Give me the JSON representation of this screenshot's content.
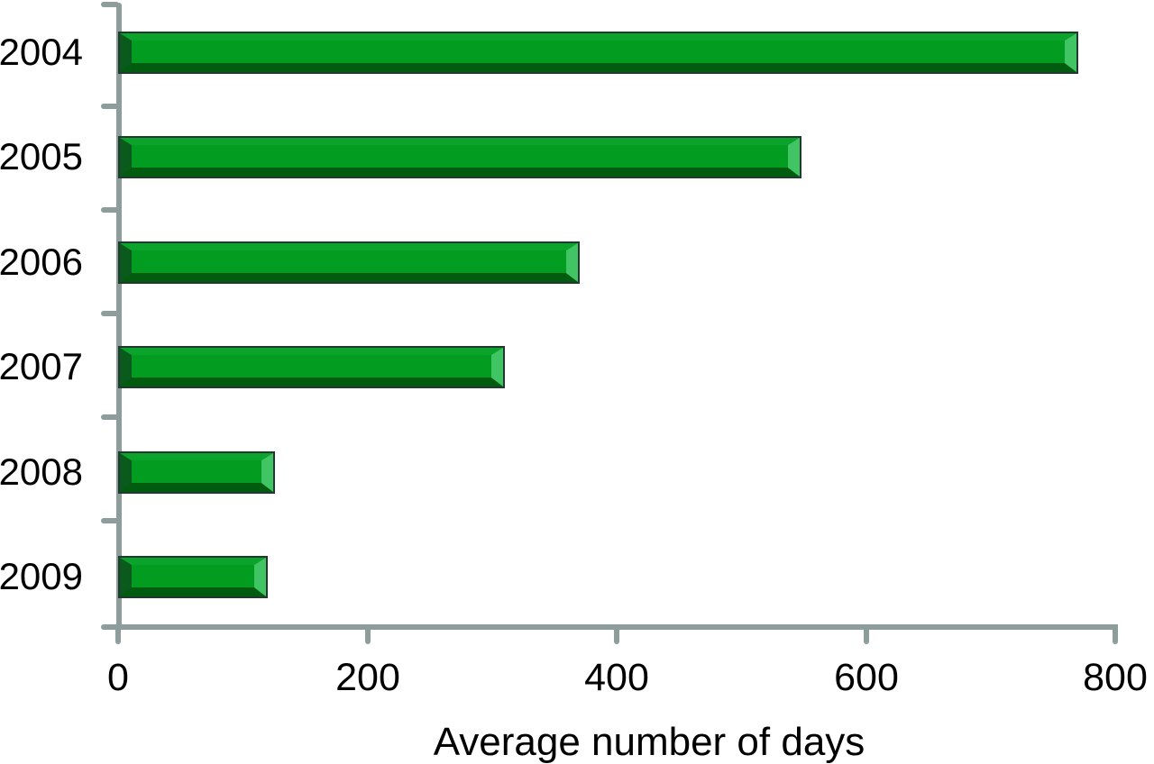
{
  "chart_data": {
    "type": "bar",
    "orientation": "horizontal",
    "title": "",
    "xlabel": "Average number of days",
    "ylabel": "",
    "categories": [
      "2004",
      "2005",
      "2006",
      "2007",
      "2008",
      "2009"
    ],
    "values": [
      770,
      548,
      370,
      310,
      126,
      120
    ],
    "xlim": [
      0,
      800
    ],
    "xticks": [
      0,
      200,
      400,
      600,
      800
    ],
    "xtick_labels": [
      "0",
      "200",
      "400",
      "600",
      "800"
    ],
    "grid": false,
    "legend": "none",
    "bar_style": "3d-bevel-green"
  },
  "colors": {
    "background": "#ffffff",
    "axis": "#8d9d9b",
    "text": "#000000",
    "bar_body": "#019c20",
    "bar_top_bevel": "#0ba32b",
    "bar_bottom_bevel": "#015c10",
    "bar_left_bevel": "#095a1c",
    "bar_right_bevel": "#41c463",
    "bar_outline": "#233830"
  }
}
